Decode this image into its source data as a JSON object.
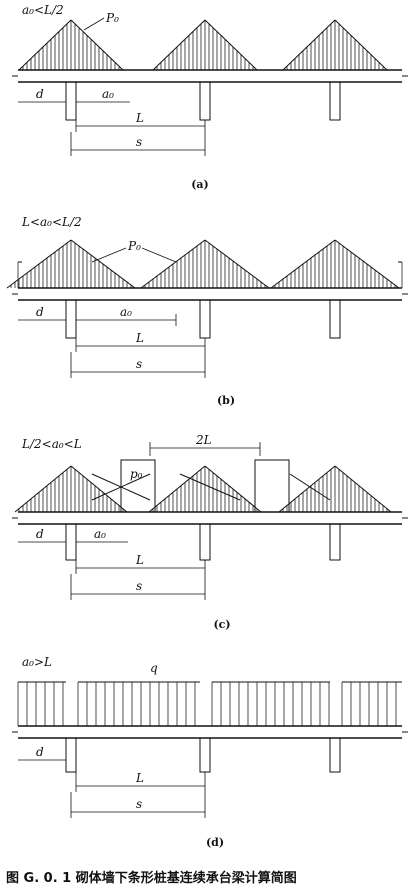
{
  "panels": [
    {
      "condition": "a₀<L/2",
      "load_label": "P₀",
      "dims": [
        "d",
        "a₀",
        "L",
        "s"
      ],
      "caption": "(a)"
    },
    {
      "condition": "L<a₀<L/2",
      "load_label": "P₀",
      "dims": [
        "d",
        "a₀",
        "L",
        "s"
      ],
      "caption": "(b)"
    },
    {
      "condition": "L/2<a₀<L",
      "load_label": "p₀",
      "span_label": "2L",
      "dims": [
        "d",
        "a₀",
        "L",
        "s"
      ],
      "caption": "(c)"
    },
    {
      "condition": "a₀>L",
      "load_label": "q",
      "dims": [
        "d",
        "L",
        "s"
      ],
      "caption": "(d)"
    }
  ],
  "figure_title": "图 G. 0. 1   砌体墙下条形桩基连续承台梁计算简图"
}
